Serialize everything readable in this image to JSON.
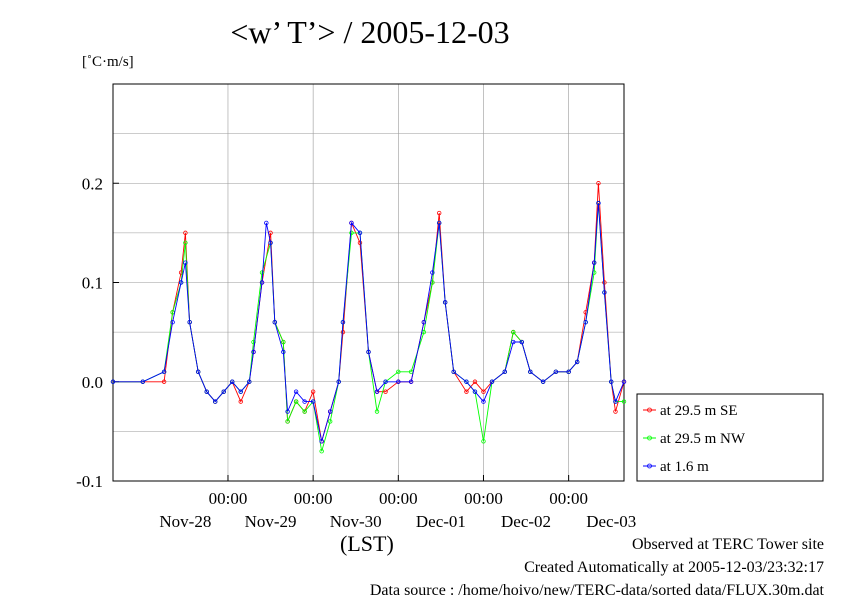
{
  "title": "<w’ T’> / 2005-12-03",
  "unit_label": "[˚C·m/s]",
  "x_unit_label": "(LST)",
  "notes": {
    "observed": "Observed at TERC Tower site",
    "created": "Created Automatically at 2005-12-03/23:32:17",
    "source": "Data source : /home/hoivo/new/TERC-data/sorted  data/FLUX.30m.dat"
  },
  "colors": {
    "se": "#ff0000",
    "nw": "#00ff00",
    "low": "#0000ff",
    "grid": "#9a9a9a"
  },
  "chart_data": {
    "type": "line",
    "title": "<w’ T’> / 2005-12-03",
    "ylabel": "[˚C·m/s]",
    "xlabel": "(LST)",
    "ylim": [
      -0.1,
      0.3
    ],
    "xlim_days": [
      -0.35,
      5.65
    ],
    "y_ticks": [
      {
        "value": -0.1,
        "label": "-0.1"
      },
      {
        "value": 0.0,
        "label": "0.0"
      },
      {
        "value": 0.1,
        "label": "0.1"
      },
      {
        "value": 0.2,
        "label": "0.2"
      }
    ],
    "x_time_ticks": [
      {
        "day": 1,
        "label": "00:00"
      },
      {
        "day": 2,
        "label": "00:00"
      },
      {
        "day": 3,
        "label": "00:00"
      },
      {
        "day": 4,
        "label": "00:00"
      },
      {
        "day": 5,
        "label": "00:00"
      }
    ],
    "x_date_ticks": [
      {
        "day": 0.5,
        "label": "Nov-28"
      },
      {
        "day": 1.5,
        "label": "Nov-29"
      },
      {
        "day": 2.5,
        "label": "Nov-30"
      },
      {
        "day": 3.5,
        "label": "Dec-01"
      },
      {
        "day": 4.5,
        "label": "Dec-02"
      },
      {
        "day": 5.5,
        "label": "Dec-03"
      }
    ],
    "grid": true,
    "legend_position": "right",
    "series": [
      {
        "name": "at 29.5 m SE",
        "color": "#ff0000",
        "marker": "circle",
        "points": [
          [
            -0.35,
            0.0
          ],
          [
            0.0,
            0.0
          ],
          [
            0.25,
            0.0
          ],
          [
            0.35,
            0.07
          ],
          [
            0.45,
            0.11
          ],
          [
            0.5,
            0.15
          ],
          [
            0.55,
            0.06
          ],
          [
            0.65,
            0.01
          ],
          [
            0.75,
            -0.01
          ],
          [
            0.85,
            -0.02
          ],
          [
            0.95,
            -0.01
          ],
          [
            1.05,
            0.0
          ],
          [
            1.15,
            -0.02
          ],
          [
            1.25,
            0.0
          ],
          [
            1.3,
            0.03
          ],
          [
            1.4,
            0.1
          ],
          [
            1.5,
            0.15
          ],
          [
            1.55,
            0.06
          ],
          [
            1.65,
            0.04
          ],
          [
            1.7,
            -0.04
          ],
          [
            1.8,
            -0.02
          ],
          [
            1.9,
            -0.03
          ],
          [
            2.0,
            -0.01
          ],
          [
            2.1,
            -0.06
          ],
          [
            2.2,
            -0.03
          ],
          [
            2.3,
            0.0
          ],
          [
            2.35,
            0.05
          ],
          [
            2.45,
            0.16
          ],
          [
            2.55,
            0.14
          ],
          [
            2.65,
            0.03
          ],
          [
            2.75,
            -0.01
          ],
          [
            2.85,
            -0.01
          ],
          [
            3.0,
            0.0
          ],
          [
            3.15,
            0.0
          ],
          [
            3.3,
            0.06
          ],
          [
            3.4,
            0.1
          ],
          [
            3.48,
            0.17
          ],
          [
            3.55,
            0.08
          ],
          [
            3.65,
            0.01
          ],
          [
            3.8,
            -0.01
          ],
          [
            3.9,
            0.0
          ],
          [
            4.0,
            -0.01
          ],
          [
            4.1,
            0.0
          ],
          [
            4.25,
            0.01
          ],
          [
            4.35,
            0.05
          ],
          [
            4.45,
            0.04
          ],
          [
            4.55,
            0.01
          ],
          [
            4.7,
            0.0
          ],
          [
            4.85,
            0.01
          ],
          [
            5.0,
            0.01
          ],
          [
            5.1,
            0.02
          ],
          [
            5.2,
            0.07
          ],
          [
            5.3,
            0.12
          ],
          [
            5.35,
            0.2
          ],
          [
            5.42,
            0.1
          ],
          [
            5.5,
            0.0
          ],
          [
            5.55,
            -0.03
          ],
          [
            5.65,
            0.0
          ]
        ]
      },
      {
        "name": "at 29.5 m NW",
        "color": "#00ff00",
        "marker": "circle",
        "points": [
          [
            -0.35,
            0.0
          ],
          [
            0.0,
            0.0
          ],
          [
            0.25,
            0.01
          ],
          [
            0.35,
            0.07
          ],
          [
            0.45,
            0.1
          ],
          [
            0.5,
            0.14
          ],
          [
            0.55,
            0.06
          ],
          [
            0.65,
            0.01
          ],
          [
            0.75,
            -0.01
          ],
          [
            0.85,
            -0.02
          ],
          [
            0.95,
            -0.01
          ],
          [
            1.05,
            0.0
          ],
          [
            1.15,
            -0.01
          ],
          [
            1.25,
            0.0
          ],
          [
            1.3,
            0.04
          ],
          [
            1.4,
            0.11
          ],
          [
            1.5,
            0.14
          ],
          [
            1.55,
            0.06
          ],
          [
            1.65,
            0.04
          ],
          [
            1.7,
            -0.04
          ],
          [
            1.8,
            -0.02
          ],
          [
            1.9,
            -0.03
          ],
          [
            2.0,
            -0.02
          ],
          [
            2.1,
            -0.07
          ],
          [
            2.2,
            -0.04
          ],
          [
            2.3,
            0.0
          ],
          [
            2.35,
            0.06
          ],
          [
            2.45,
            0.15
          ],
          [
            2.55,
            0.15
          ],
          [
            2.65,
            0.03
          ],
          [
            2.75,
            -0.03
          ],
          [
            2.85,
            0.0
          ],
          [
            3.0,
            0.01
          ],
          [
            3.15,
            0.01
          ],
          [
            3.3,
            0.05
          ],
          [
            3.4,
            0.1
          ],
          [
            3.48,
            0.16
          ],
          [
            3.55,
            0.08
          ],
          [
            3.65,
            0.01
          ],
          [
            3.8,
            0.0
          ],
          [
            3.9,
            -0.01
          ],
          [
            4.0,
            -0.06
          ],
          [
            4.1,
            0.0
          ],
          [
            4.25,
            0.01
          ],
          [
            4.35,
            0.05
          ],
          [
            4.45,
            0.04
          ],
          [
            4.55,
            0.01
          ],
          [
            4.7,
            0.0
          ],
          [
            4.85,
            0.01
          ],
          [
            5.0,
            0.01
          ],
          [
            5.1,
            0.02
          ],
          [
            5.2,
            0.06
          ],
          [
            5.3,
            0.11
          ],
          [
            5.35,
            0.18
          ],
          [
            5.42,
            0.09
          ],
          [
            5.5,
            0.0
          ],
          [
            5.55,
            -0.02
          ],
          [
            5.65,
            -0.02
          ]
        ]
      },
      {
        "name": "at 1.6 m",
        "color": "#0000ff",
        "marker": "circle",
        "points": [
          [
            -0.35,
            0.0
          ],
          [
            0.0,
            0.0
          ],
          [
            0.25,
            0.01
          ],
          [
            0.35,
            0.06
          ],
          [
            0.45,
            0.1
          ],
          [
            0.5,
            0.12
          ],
          [
            0.55,
            0.06
          ],
          [
            0.65,
            0.01
          ],
          [
            0.75,
            -0.01
          ],
          [
            0.85,
            -0.02
          ],
          [
            0.95,
            -0.01
          ],
          [
            1.05,
            0.0
          ],
          [
            1.15,
            -0.01
          ],
          [
            1.25,
            0.0
          ],
          [
            1.3,
            0.03
          ],
          [
            1.4,
            0.1
          ],
          [
            1.45,
            0.16
          ],
          [
            1.5,
            0.14
          ],
          [
            1.55,
            0.06
          ],
          [
            1.65,
            0.03
          ],
          [
            1.7,
            -0.03
          ],
          [
            1.8,
            -0.01
          ],
          [
            1.9,
            -0.02
          ],
          [
            2.0,
            -0.02
          ],
          [
            2.1,
            -0.06
          ],
          [
            2.2,
            -0.03
          ],
          [
            2.3,
            0.0
          ],
          [
            2.35,
            0.06
          ],
          [
            2.45,
            0.16
          ],
          [
            2.55,
            0.15
          ],
          [
            2.65,
            0.03
          ],
          [
            2.75,
            -0.01
          ],
          [
            2.85,
            0.0
          ],
          [
            3.0,
            0.0
          ],
          [
            3.15,
            0.0
          ],
          [
            3.3,
            0.06
          ],
          [
            3.4,
            0.11
          ],
          [
            3.48,
            0.16
          ],
          [
            3.55,
            0.08
          ],
          [
            3.65,
            0.01
          ],
          [
            3.8,
            0.0
          ],
          [
            3.9,
            -0.01
          ],
          [
            4.0,
            -0.02
          ],
          [
            4.1,
            0.0
          ],
          [
            4.25,
            0.01
          ],
          [
            4.35,
            0.04
          ],
          [
            4.45,
            0.04
          ],
          [
            4.55,
            0.01
          ],
          [
            4.7,
            0.0
          ],
          [
            4.85,
            0.01
          ],
          [
            5.0,
            0.01
          ],
          [
            5.1,
            0.02
          ],
          [
            5.2,
            0.06
          ],
          [
            5.3,
            0.12
          ],
          [
            5.35,
            0.18
          ],
          [
            5.42,
            0.09
          ],
          [
            5.5,
            0.0
          ],
          [
            5.55,
            -0.02
          ],
          [
            5.65,
            0.0
          ]
        ]
      }
    ]
  }
}
